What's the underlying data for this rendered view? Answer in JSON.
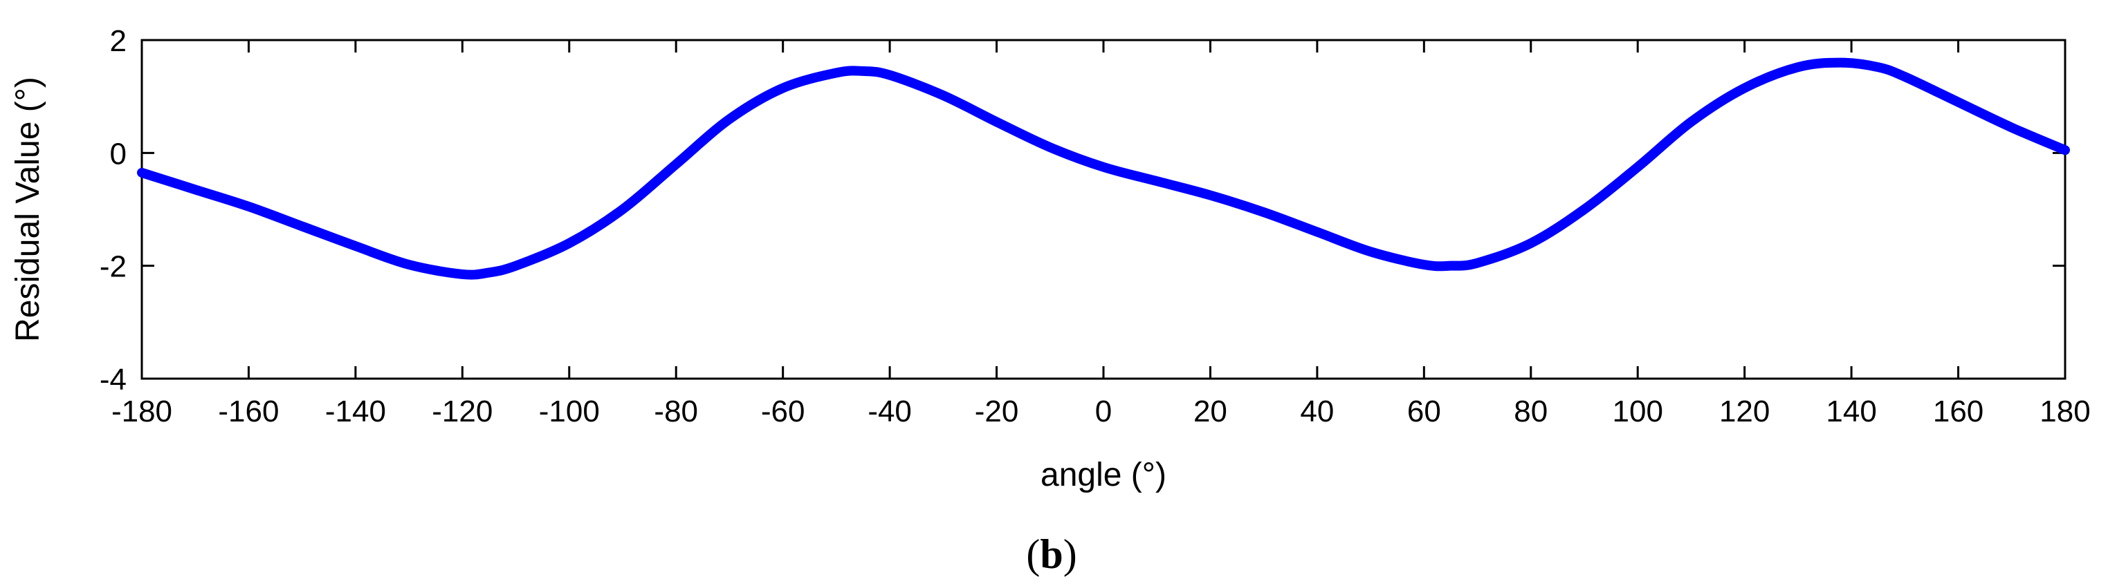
{
  "chart_data": {
    "type": "line",
    "title": "",
    "xlabel": "angle (°)",
    "ylabel": "Residual Value (°)",
    "xlim": [
      -180,
      180
    ],
    "ylim": [
      -4,
      2
    ],
    "xticks": [
      -180,
      -160,
      -140,
      -120,
      -100,
      -80,
      -60,
      -40,
      -20,
      0,
      20,
      40,
      60,
      80,
      100,
      120,
      140,
      160,
      180
    ],
    "yticks": [
      -4,
      -2,
      0,
      2
    ],
    "grid": false,
    "line_color": "#0000ff",
    "series": [
      {
        "x": [
          -180,
          -170,
          -160,
          -150,
          -140,
          -130,
          -120,
          -115,
          -110,
          -100,
          -90,
          -80,
          -70,
          -60,
          -50,
          -45,
          -40,
          -30,
          -20,
          -10,
          0,
          10,
          20,
          30,
          40,
          50,
          60,
          65,
          70,
          80,
          90,
          100,
          110,
          120,
          130,
          138,
          145,
          150,
          160,
          170,
          180
        ],
        "y": [
          -0.35,
          -0.65,
          -0.95,
          -1.3,
          -1.65,
          -1.98,
          -2.15,
          -2.12,
          -2.0,
          -1.6,
          -1.0,
          -0.2,
          0.6,
          1.15,
          1.42,
          1.45,
          1.38,
          1.02,
          0.55,
          0.1,
          -0.25,
          -0.5,
          -0.75,
          -1.05,
          -1.4,
          -1.75,
          -1.98,
          -2.0,
          -1.95,
          -1.6,
          -1.0,
          -0.25,
          0.55,
          1.15,
          1.52,
          1.6,
          1.52,
          1.35,
          0.9,
          0.45,
          0.05
        ]
      }
    ],
    "panel_label": "b"
  }
}
